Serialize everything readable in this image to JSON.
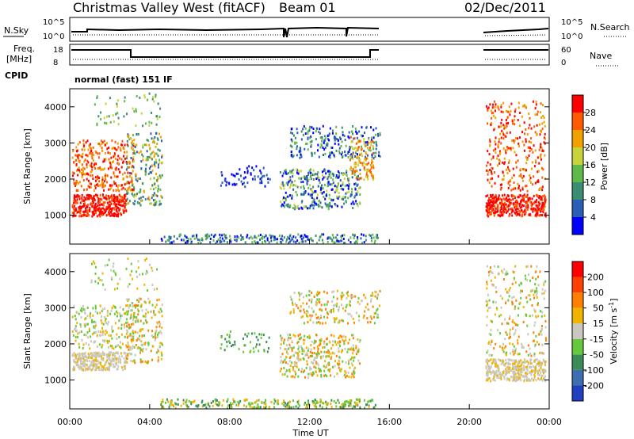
{
  "header": {
    "station": "Christmas Valley West (fitACF)",
    "beam": "Beam 01",
    "date": "02/Dec/2011"
  },
  "strip_labels": {
    "nsky": "N.Sky",
    "nsearch": "N.Search",
    "freq_top": "Freq.",
    "freq_unit": "[MHz]",
    "nave": "Nave",
    "cpid": "CPID",
    "mode": "normal (fast) 151 IF",
    "noise_ticks_left": [
      "10^5",
      "10^0"
    ],
    "noise_ticks_right": [
      "10^5",
      "10^0"
    ],
    "freq_ticks_left": [
      "18",
      "8"
    ],
    "nave_ticks_right": [
      "60",
      "0"
    ]
  },
  "chart_data": [
    {
      "type": "heatmap",
      "name": "power",
      "ylabel": "Slant Range [km]",
      "xlabel": "",
      "ylim": [
        200,
        4500
      ],
      "yticks": [
        "1000",
        "2000",
        "3000",
        "4000"
      ],
      "x_ticks": [
        "00:00",
        "04:00",
        "08:00",
        "12:00",
        "16:00",
        "20:00",
        "00:00"
      ],
      "x_range_hours": [
        0,
        24
      ],
      "colorbar": {
        "label": "Power [dB]",
        "ticks": [
          "4",
          "8",
          "12",
          "16",
          "20",
          "24",
          "28"
        ],
        "colors": [
          "#0000ff",
          "#2a5fb8",
          "#3c8c72",
          "#5fb84a",
          "#c8d23c",
          "#f0a000",
          "#ff5a00",
          "#ff0000"
        ]
      },
      "data_gap_hours": [
        15.5,
        20.67
      ]
    },
    {
      "type": "heatmap",
      "name": "velocity",
      "ylabel": "Slant Range [km]",
      "xlabel": "Time UT",
      "ylim": [
        200,
        4500
      ],
      "yticks": [
        "1000",
        "2000",
        "3000",
        "4000"
      ],
      "x_ticks": [
        "00:00",
        "04:00",
        "08:00",
        "12:00",
        "16:00",
        "20:00",
        "00:00"
      ],
      "x_range_hours": [
        0,
        24
      ],
      "colorbar": {
        "label": "Velocity [m s-1]",
        "ticks": [
          "200",
          "100",
          "50",
          "15",
          "-15",
          "-50",
          "-100",
          "-200"
        ],
        "colors": [
          "#2040c0",
          "#3d6fb0",
          "#3c8c5a",
          "#66c83c",
          "#c8c8c0",
          "#f0b400",
          "#ff8000",
          "#ff4000",
          "#ff0000"
        ]
      },
      "data_gap_hours": [
        15.5,
        20.67
      ]
    }
  ]
}
